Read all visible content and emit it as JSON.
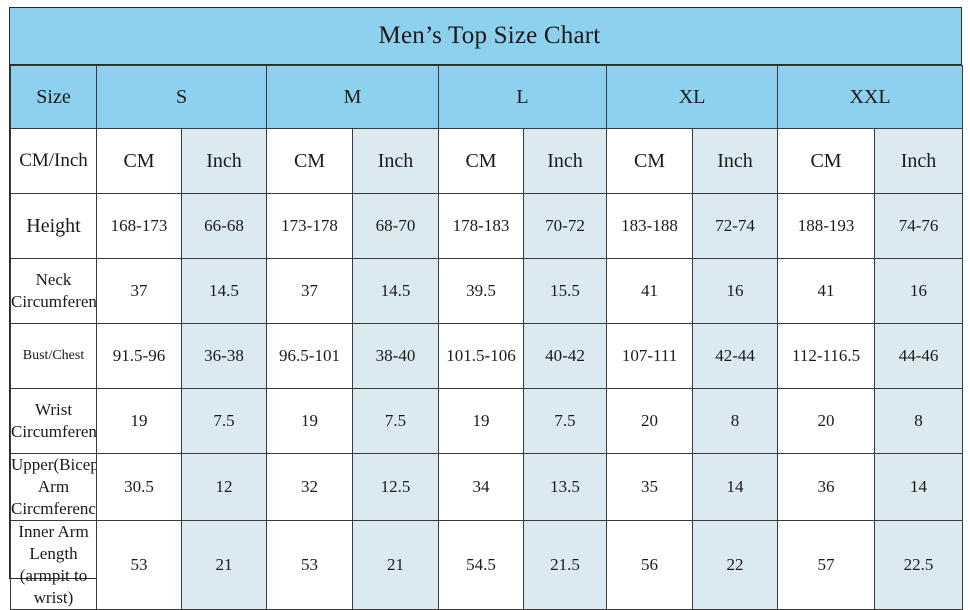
{
  "title": "Men’s Top Size Chart",
  "size_header": "Size",
  "sizes": [
    "S",
    "M",
    "L",
    "XL",
    "XXL"
  ],
  "unit_row": {
    "label": "CM/Inch",
    "cm": "CM",
    "inch": "Inch"
  },
  "rows": [
    {
      "label_lines": [
        "Height"
      ],
      "values": [
        {
          "cm": "168-173",
          "inch": "66-68"
        },
        {
          "cm": "173-178",
          "inch": "68-70"
        },
        {
          "cm": "178-183",
          "inch": "70-72"
        },
        {
          "cm": "183-188",
          "inch": "72-74"
        },
        {
          "cm": "188-193",
          "inch": "74-76"
        }
      ]
    },
    {
      "label_lines": [
        "Neck",
        "Circumference"
      ],
      "values": [
        {
          "cm": "37",
          "inch": "14.5"
        },
        {
          "cm": "37",
          "inch": "14.5"
        },
        {
          "cm": "39.5",
          "inch": "15.5"
        },
        {
          "cm": "41",
          "inch": "16"
        },
        {
          "cm": "41",
          "inch": "16"
        }
      ]
    },
    {
      "label_lines": [
        "Bust/Chest"
      ],
      "values": [
        {
          "cm": "91.5-96",
          "inch": "36-38"
        },
        {
          "cm": "96.5-101",
          "inch": "38-40"
        },
        {
          "cm": "101.5-106",
          "inch": "40-42"
        },
        {
          "cm": "107-111",
          "inch": "42-44"
        },
        {
          "cm": "112-116.5",
          "inch": "44-46"
        }
      ]
    },
    {
      "label_lines": [
        "Wrist",
        "Circumference"
      ],
      "values": [
        {
          "cm": "19",
          "inch": "7.5"
        },
        {
          "cm": "19",
          "inch": "7.5"
        },
        {
          "cm": "19",
          "inch": "7.5"
        },
        {
          "cm": "20",
          "inch": "8"
        },
        {
          "cm": "20",
          "inch": "8"
        }
      ]
    },
    {
      "label_lines": [
        "Upper(Biceps)",
        "Arm",
        "Circmference"
      ],
      "values": [
        {
          "cm": "30.5",
          "inch": "12"
        },
        {
          "cm": "32",
          "inch": "12.5"
        },
        {
          "cm": "34",
          "inch": "13.5"
        },
        {
          "cm": "35",
          "inch": "14"
        },
        {
          "cm": "36",
          "inch": "14"
        }
      ]
    },
    {
      "label_lines": [
        "Inner Arm",
        "Length",
        "(armpit to wrist)"
      ],
      "values": [
        {
          "cm": "53",
          "inch": "21"
        },
        {
          "cm": "53",
          "inch": "21"
        },
        {
          "cm": "54.5",
          "inch": "21.5"
        },
        {
          "cm": "56",
          "inch": "22"
        },
        {
          "cm": "57",
          "inch": "22.5"
        }
      ]
    }
  ],
  "colors": {
    "header_blue": "#8ed1ee",
    "inch_column": "#dbe9f0",
    "border": "#2b2b2b"
  }
}
